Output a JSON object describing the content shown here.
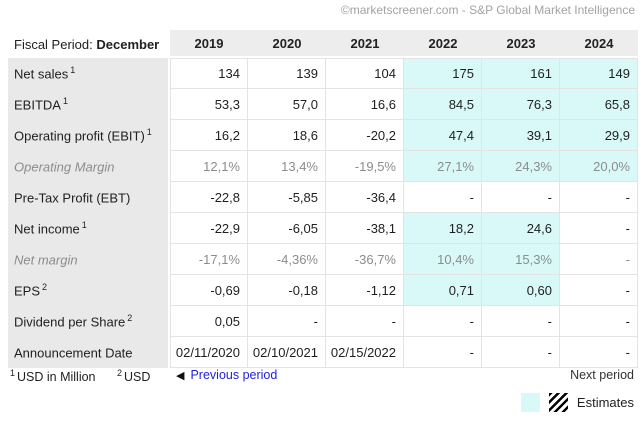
{
  "attribution": "©marketscreener.com - S&P Global Market Intelligence",
  "colors": {
    "estimate_bg": "#d9f9f9",
    "header_bg": "#ededed",
    "label_bg": "#e9e9e9",
    "border": "#e3e3e3",
    "link_blue": "#2222dd",
    "muted_text": "#8c8c8c",
    "attribution_gray": "#a3a3a3"
  },
  "chart_data": {
    "type": "table",
    "title_label": "Fiscal Period:",
    "title_value": "December",
    "columns": [
      "2019",
      "2020",
      "2021",
      "2022",
      "2023",
      "2024"
    ],
    "rows": [
      {
        "label": "Net sales",
        "sup": "1",
        "values": [
          "134",
          "139",
          "104",
          "175",
          "161",
          "149"
        ],
        "estimates": [
          false,
          false,
          false,
          true,
          true,
          true
        ]
      },
      {
        "label": "EBITDA",
        "sup": "1",
        "values": [
          "53,3",
          "57,0",
          "16,6",
          "84,5",
          "76,3",
          "65,8"
        ],
        "estimates": [
          false,
          false,
          false,
          true,
          true,
          true
        ]
      },
      {
        "label": "Operating profit (EBIT)",
        "sup": "1",
        "values": [
          "16,2",
          "18,6",
          "-20,2",
          "47,4",
          "39,1",
          "29,9"
        ],
        "estimates": [
          false,
          false,
          false,
          true,
          true,
          true
        ]
      },
      {
        "label": "Operating Margin",
        "sup": "",
        "values": [
          "12,1%",
          "13,4%",
          "-19,5%",
          "27,1%",
          "24,3%",
          "20,0%"
        ],
        "estimates": [
          false,
          false,
          false,
          true,
          true,
          true
        ]
      },
      {
        "label": "Pre-Tax Profit (EBT)",
        "sup": "",
        "values": [
          "-22,8",
          "-5,85",
          "-36,4",
          "-",
          "-",
          "-"
        ],
        "estimates": [
          false,
          false,
          false,
          false,
          false,
          false
        ]
      },
      {
        "label": "Net income",
        "sup": "1",
        "values": [
          "-22,9",
          "-6,05",
          "-38,1",
          "18,2",
          "24,6",
          "-"
        ],
        "estimates": [
          false,
          false,
          false,
          true,
          true,
          false
        ]
      },
      {
        "label": "Net margin",
        "sup": "",
        "values": [
          "-17,1%",
          "-4,36%",
          "-36,7%",
          "10,4%",
          "15,3%",
          "-"
        ],
        "estimates": [
          false,
          false,
          false,
          true,
          true,
          false
        ]
      },
      {
        "label": "EPS",
        "sup": "2",
        "values": [
          "-0,69",
          "-0,18",
          "-1,12",
          "0,71",
          "0,60",
          "-"
        ],
        "estimates": [
          false,
          false,
          false,
          true,
          true,
          false
        ]
      },
      {
        "label": "Dividend per Share",
        "sup": "2",
        "values": [
          "0,05",
          "-",
          "-",
          "-",
          "-",
          "-"
        ],
        "estimates": [
          false,
          false,
          false,
          false,
          false,
          false
        ]
      },
      {
        "label": "Announcement Date",
        "sup": "",
        "values": [
          "02/11/2020",
          "02/10/2021",
          "02/15/2022",
          "-",
          "-",
          "-"
        ],
        "estimates": [
          false,
          false,
          false,
          false,
          false,
          false
        ]
      }
    ],
    "legend": [
      {
        "label": "Estimates",
        "swatches": [
          "cyan-fill",
          "diagonal-stripes"
        ]
      }
    ]
  },
  "footer": {
    "footnote1_marker": "1",
    "footnote1_text": "USD in Million",
    "footnote2_marker": "2",
    "footnote2_text": "USD",
    "prev_arrow": "◀",
    "prev_label": "Previous period",
    "next_label": "Next period",
    "estimates_label": "Estimates"
  }
}
